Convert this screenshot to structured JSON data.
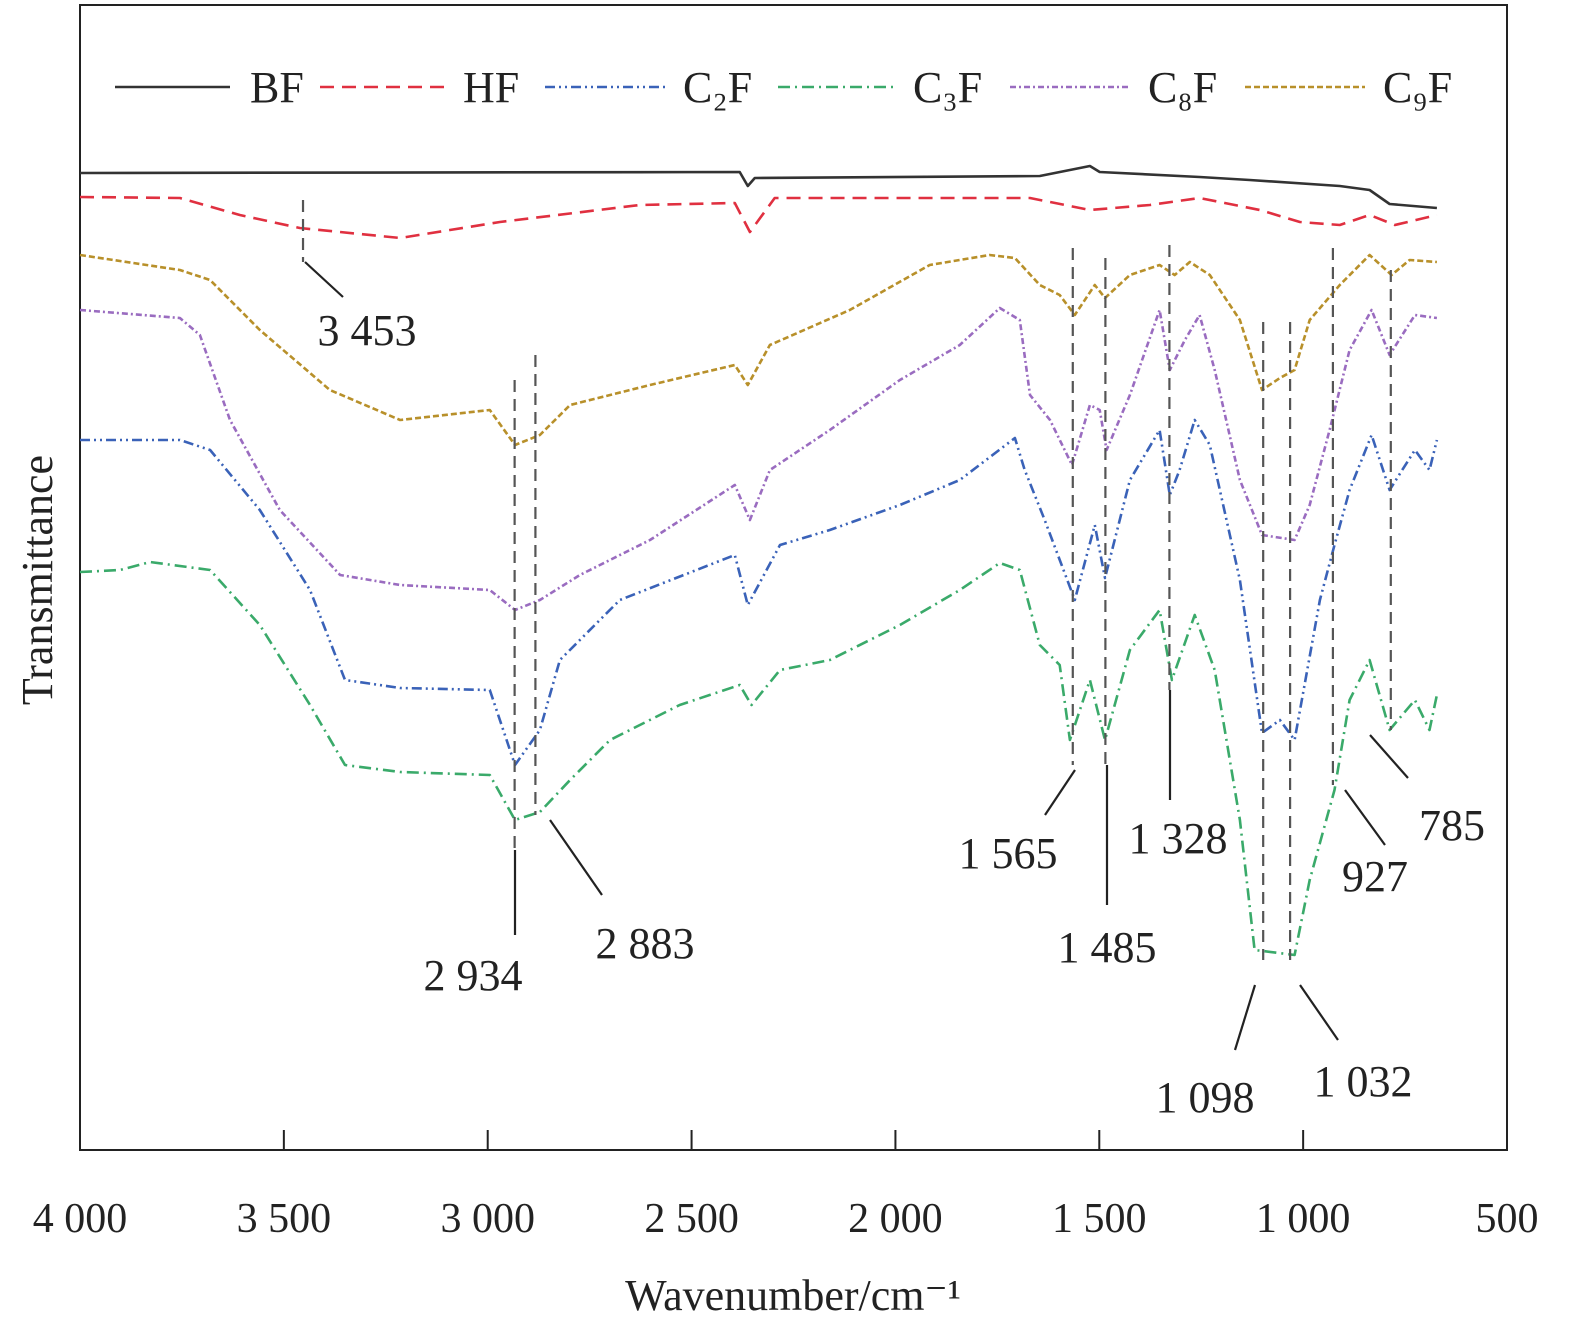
{
  "chart_data": {
    "type": "line",
    "title": "",
    "xlabel": "Wavenumber/cm⁻¹",
    "ylabel": "Transmittance",
    "xlim": [
      4000,
      500
    ],
    "ylim": [
      0,
      114.5
    ],
    "x_ticks": [
      4000,
      3500,
      3000,
      2500,
      2000,
      1500,
      1000,
      500
    ],
    "x_tick_labels": [
      "4 000",
      "3 500",
      "3 000",
      "2 500",
      "2 000",
      "1 500",
      "1 000",
      "500"
    ],
    "grid": false,
    "legend_position": "top",
    "series": [
      {
        "name": "BF",
        "color": "#333333",
        "style": "solid",
        "points": [
          [
            4000,
            97.7
          ],
          [
            2382,
            97.8
          ],
          [
            2362,
            96.4
          ],
          [
            2345,
            97.2
          ],
          [
            1646,
            97.4
          ],
          [
            1523,
            98.4
          ],
          [
            1499,
            97.8
          ],
          [
            1254,
            97.3
          ],
          [
            1131,
            97.0
          ],
          [
            910,
            96.4
          ],
          [
            837,
            96.0
          ],
          [
            788,
            94.6
          ],
          [
            672,
            94.2
          ]
        ]
      },
      {
        "name": "HF",
        "color": "#e03040",
        "style": "dashed",
        "points": [
          [
            4000,
            95.3
          ],
          [
            3755,
            95.2
          ],
          [
            3608,
            93.5
          ],
          [
            3461,
            92.2
          ],
          [
            3215,
            91.2
          ],
          [
            2970,
            92.8
          ],
          [
            2627,
            94.5
          ],
          [
            2394,
            94.7
          ],
          [
            2357,
            91.8
          ],
          [
            2296,
            95.2
          ],
          [
            1670,
            95.2
          ],
          [
            1523,
            94.0
          ],
          [
            1376,
            94.5
          ],
          [
            1254,
            95.2
          ],
          [
            1106,
            94.0
          ],
          [
            1008,
            92.8
          ],
          [
            910,
            92.5
          ],
          [
            837,
            93.5
          ],
          [
            775,
            92.5
          ],
          [
            672,
            93.5
          ]
        ]
      },
      {
        "name": "C₂F",
        "color": "#3a62b8",
        "style": "dash-dot-dot",
        "points": [
          [
            4000,
            71.0
          ],
          [
            3755,
            71.0
          ],
          [
            3681,
            70.0
          ],
          [
            3559,
            64.0
          ],
          [
            3436,
            56.0
          ],
          [
            3350,
            47.0
          ],
          [
            3215,
            46.2
          ],
          [
            2995,
            46.0
          ],
          [
            2933,
            38.5
          ],
          [
            2872,
            42.0
          ],
          [
            2823,
            49.0
          ],
          [
            2676,
            55.0
          ],
          [
            2394,
            59.5
          ],
          [
            2362,
            54.5
          ],
          [
            2283,
            60.5
          ],
          [
            2161,
            62.0
          ],
          [
            1989,
            64.5
          ],
          [
            1842,
            67.0
          ],
          [
            1707,
            71.2
          ],
          [
            1683,
            68.0
          ],
          [
            1634,
            63.0
          ],
          [
            1560,
            55.0
          ],
          [
            1511,
            62.5
          ],
          [
            1486,
            57.2
          ],
          [
            1425,
            67.0
          ],
          [
            1352,
            72.0
          ],
          [
            1327,
            65.5
          ],
          [
            1303,
            68.0
          ],
          [
            1266,
            73.0
          ],
          [
            1229,
            70.5
          ],
          [
            1155,
            57.0
          ],
          [
            1101,
            41.7
          ],
          [
            1057,
            43.0
          ],
          [
            1021,
            41.0
          ],
          [
            959,
            55.0
          ],
          [
            923,
            60.5
          ],
          [
            886,
            66.0
          ],
          [
            832,
            71.5
          ],
          [
            788,
            66.0
          ],
          [
            726,
            70.0
          ],
          [
            690,
            68.0
          ],
          [
            672,
            71.0
          ]
        ]
      },
      {
        "name": "C₃F",
        "color": "#3aaa6a",
        "style": "dash-dot",
        "points": [
          [
            4000,
            57.8
          ],
          [
            3902,
            58.0
          ],
          [
            3828,
            58.8
          ],
          [
            3681,
            58.0
          ],
          [
            3559,
            52.5
          ],
          [
            3436,
            44.5
          ],
          [
            3350,
            38.5
          ],
          [
            3215,
            37.8
          ],
          [
            2995,
            37.5
          ],
          [
            2933,
            33.0
          ],
          [
            2872,
            33.8
          ],
          [
            2798,
            37.0
          ],
          [
            2700,
            41.0
          ],
          [
            2529,
            44.5
          ],
          [
            2382,
            46.5
          ],
          [
            2353,
            44.5
          ],
          [
            2283,
            48.0
          ],
          [
            2161,
            49.0
          ],
          [
            1989,
            52.5
          ],
          [
            1842,
            56.0
          ],
          [
            1744,
            58.7
          ],
          [
            1695,
            58.0
          ],
          [
            1646,
            50.5
          ],
          [
            1597,
            48.5
          ],
          [
            1572,
            41.0
          ],
          [
            1523,
            47.0
          ],
          [
            1486,
            41.0
          ],
          [
            1425,
            50.0
          ],
          [
            1352,
            54.0
          ],
          [
            1322,
            47.0
          ],
          [
            1266,
            53.5
          ],
          [
            1217,
            48.0
          ],
          [
            1155,
            33.0
          ],
          [
            1119,
            20.0
          ],
          [
            1021,
            19.5
          ],
          [
            984,
            27.0
          ],
          [
            923,
            36.0
          ],
          [
            886,
            45.0
          ],
          [
            837,
            49.0
          ],
          [
            788,
            42.0
          ],
          [
            726,
            45.0
          ],
          [
            690,
            42.0
          ],
          [
            672,
            45.5
          ]
        ]
      },
      {
        "name": "C₈F",
        "color": "#9a6cc0",
        "style": "dotted-dash",
        "points": [
          [
            4000,
            84.0
          ],
          [
            3755,
            83.2
          ],
          [
            3706,
            81.5
          ],
          [
            3632,
            73.0
          ],
          [
            3510,
            64.0
          ],
          [
            3362,
            57.5
          ],
          [
            3215,
            56.5
          ],
          [
            2995,
            56.0
          ],
          [
            2933,
            54.0
          ],
          [
            2872,
            55.0
          ],
          [
            2774,
            57.5
          ],
          [
            2602,
            61.0
          ],
          [
            2394,
            66.5
          ],
          [
            2357,
            63.0
          ],
          [
            2308,
            68.0
          ],
          [
            2161,
            72.0
          ],
          [
            1989,
            77.0
          ],
          [
            1842,
            80.5
          ],
          [
            1744,
            84.2
          ],
          [
            1695,
            83.0
          ],
          [
            1670,
            75.5
          ],
          [
            1621,
            73.0
          ],
          [
            1567,
            68.5
          ],
          [
            1523,
            74.5
          ],
          [
            1499,
            74.0
          ],
          [
            1482,
            70.0
          ],
          [
            1425,
            75.5
          ],
          [
            1352,
            84.0
          ],
          [
            1327,
            78.0
          ],
          [
            1290,
            81.0
          ],
          [
            1254,
            83.5
          ],
          [
            1217,
            78.0
          ],
          [
            1155,
            67.0
          ],
          [
            1101,
            61.5
          ],
          [
            1021,
            61.0
          ],
          [
            984,
            64.5
          ],
          [
            935,
            72.0
          ],
          [
            886,
            80.0
          ],
          [
            832,
            84.0
          ],
          [
            788,
            79.5
          ],
          [
            726,
            83.5
          ],
          [
            672,
            83.2
          ]
        ]
      },
      {
        "name": "C₉F",
        "color": "#b8902a",
        "style": "short-dash",
        "points": [
          [
            4000,
            89.5
          ],
          [
            3755,
            88.0
          ],
          [
            3681,
            87.0
          ],
          [
            3559,
            82.0
          ],
          [
            3387,
            76.0
          ],
          [
            3215,
            73.0
          ],
          [
            2995,
            74.0
          ],
          [
            2933,
            70.5
          ],
          [
            2872,
            71.5
          ],
          [
            2798,
            74.5
          ],
          [
            2602,
            76.5
          ],
          [
            2394,
            78.5
          ],
          [
            2362,
            76.5
          ],
          [
            2308,
            80.5
          ],
          [
            2112,
            84.0
          ],
          [
            1916,
            88.5
          ],
          [
            1769,
            89.5
          ],
          [
            1707,
            89.2
          ],
          [
            1646,
            86.5
          ],
          [
            1597,
            85.5
          ],
          [
            1560,
            83.5
          ],
          [
            1511,
            86.5
          ],
          [
            1486,
            85.2
          ],
          [
            1425,
            87.5
          ],
          [
            1352,
            88.5
          ],
          [
            1315,
            87.5
          ],
          [
            1278,
            88.8
          ],
          [
            1229,
            87.5
          ],
          [
            1155,
            83.0
          ],
          [
            1101,
            76.0
          ],
          [
            1057,
            77.2
          ],
          [
            1021,
            78.0
          ],
          [
            984,
            83.0
          ],
          [
            910,
            86.5
          ],
          [
            837,
            89.5
          ],
          [
            783,
            87.5
          ],
          [
            739,
            89.0
          ],
          [
            672,
            88.8
          ]
        ]
      }
    ],
    "annotations": [
      {
        "label": "3 453",
        "x": 3453
      },
      {
        "label": "2 934",
        "x": 2934
      },
      {
        "label": "2 883",
        "x": 2883
      },
      {
        "label": "1 565",
        "x": 1565
      },
      {
        "label": "1 485",
        "x": 1485
      },
      {
        "label": "1 328",
        "x": 1328
      },
      {
        "label": "1 098",
        "x": 1098
      },
      {
        "label": "1 032",
        "x": 1032
      },
      {
        "label": "927",
        "x": 927
      },
      {
        "label": "785",
        "x": 785
      }
    ]
  }
}
